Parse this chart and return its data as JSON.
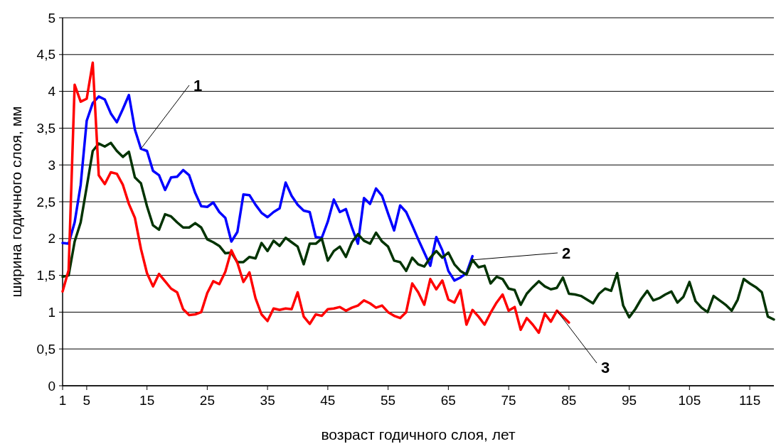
{
  "chart_data": {
    "type": "line",
    "xlabel": "возраст годичного слоя, лет",
    "ylabel": "ширина годичного слоя, мм",
    "xlim": [
      1,
      119
    ],
    "xticks": [
      1,
      5,
      15,
      25,
      35,
      45,
      55,
      65,
      75,
      85,
      95,
      105,
      115
    ],
    "ylim": [
      0,
      5
    ],
    "yticks": [
      0,
      {
        "value": 0.5,
        "label": "0,5"
      },
      1,
      {
        "value": 1.5,
        "label": "1,5"
      },
      2,
      {
        "value": 2.5,
        "label": "2,5"
      },
      3,
      {
        "value": 3.5,
        "label": "3,5"
      },
      4,
      {
        "value": 4.5,
        "label": "4,5"
      },
      5
    ],
    "grid": "y",
    "marker": "none",
    "line_style": "solid",
    "series": [
      {
        "name": "1",
        "color": "#0000ff",
        "x": [
          1,
          2,
          3,
          4,
          5,
          6,
          7,
          8,
          9,
          10,
          11,
          12,
          13,
          14,
          15,
          16,
          17,
          18,
          19,
          20,
          21,
          22,
          23,
          24,
          25,
          26,
          27,
          28,
          29,
          30,
          31,
          32,
          33,
          34,
          35,
          36,
          37,
          38,
          39,
          40,
          41,
          42,
          43,
          44,
          45,
          46,
          47,
          48,
          49,
          50,
          51,
          52,
          53,
          54,
          55,
          56,
          57,
          58,
          59,
          60,
          61,
          62,
          63,
          64,
          65,
          66,
          67,
          68,
          69
        ],
        "values": [
          1.94,
          1.93,
          2.22,
          2.73,
          3.6,
          3.84,
          3.93,
          3.89,
          3.7,
          3.58,
          3.76,
          3.95,
          3.48,
          3.22,
          3.19,
          2.92,
          2.86,
          2.66,
          2.83,
          2.84,
          2.93,
          2.86,
          2.62,
          2.44,
          2.43,
          2.49,
          2.36,
          2.28,
          1.96,
          2.09,
          2.6,
          2.59,
          2.46,
          2.35,
          2.29,
          2.36,
          2.41,
          2.76,
          2.58,
          2.46,
          2.38,
          2.36,
          2.02,
          2.01,
          2.23,
          2.53,
          2.36,
          2.4,
          2.15,
          1.93,
          2.55,
          2.47,
          2.68,
          2.58,
          2.34,
          2.11,
          2.45,
          2.36,
          2.18,
          1.99,
          1.81,
          1.63,
          2.02,
          1.84,
          1.56,
          1.43,
          1.47,
          1.53,
          1.76
        ]
      },
      {
        "name": "2",
        "color": "#003300",
        "x": [
          1,
          2,
          3,
          4,
          5,
          6,
          7,
          8,
          9,
          10,
          11,
          12,
          13,
          14,
          15,
          16,
          17,
          18,
          19,
          20,
          21,
          22,
          23,
          24,
          25,
          26,
          27,
          28,
          29,
          30,
          31,
          32,
          33,
          34,
          35,
          36,
          37,
          38,
          39,
          40,
          41,
          42,
          43,
          44,
          45,
          46,
          47,
          48,
          49,
          50,
          51,
          52,
          53,
          54,
          55,
          56,
          57,
          58,
          59,
          60,
          61,
          62,
          63,
          64,
          65,
          66,
          67,
          68,
          69,
          70,
          71,
          72,
          73,
          74,
          75,
          76,
          77,
          78,
          79,
          80,
          81,
          82,
          83,
          84,
          85,
          86,
          87,
          88,
          89,
          90,
          91,
          92,
          93,
          94,
          95,
          96,
          97,
          98,
          99,
          100,
          101,
          102,
          103,
          104,
          105,
          106,
          107,
          108,
          109,
          110,
          111,
          112,
          113,
          114,
          115,
          116,
          117,
          118,
          119
        ],
        "values": [
          1.48,
          1.5,
          1.96,
          2.22,
          2.7,
          3.19,
          3.29,
          3.25,
          3.3,
          3.19,
          3.11,
          3.18,
          2.83,
          2.75,
          2.44,
          2.18,
          2.12,
          2.33,
          2.3,
          2.22,
          2.15,
          2.15,
          2.21,
          2.15,
          1.99,
          1.95,
          1.9,
          1.8,
          1.81,
          1.68,
          1.68,
          1.75,
          1.73,
          1.94,
          1.83,
          1.97,
          1.9,
          2.01,
          1.95,
          1.89,
          1.65,
          1.93,
          1.93,
          2.0,
          1.7,
          1.83,
          1.89,
          1.75,
          1.95,
          2.06,
          1.97,
          1.93,
          2.08,
          1.96,
          1.89,
          1.7,
          1.68,
          1.56,
          1.74,
          1.65,
          1.62,
          1.74,
          1.83,
          1.74,
          1.81,
          1.65,
          1.56,
          1.51,
          1.71,
          1.61,
          1.63,
          1.39,
          1.48,
          1.45,
          1.32,
          1.3,
          1.1,
          1.25,
          1.34,
          1.42,
          1.35,
          1.31,
          1.33,
          1.47,
          1.25,
          1.24,
          1.22,
          1.17,
          1.12,
          1.25,
          1.32,
          1.29,
          1.53,
          1.09,
          0.93,
          1.04,
          1.18,
          1.29,
          1.16,
          1.19,
          1.24,
          1.28,
          1.13,
          1.21,
          1.41,
          1.15,
          1.06,
          1.0,
          1.22,
          1.16,
          1.1,
          1.02,
          1.17,
          1.45,
          1.39,
          1.34,
          1.27,
          0.94,
          0.9
        ]
      },
      {
        "name": "3",
        "color": "#ff0000",
        "x": [
          1,
          2,
          3,
          4,
          5,
          6,
          7,
          8,
          9,
          10,
          11,
          12,
          13,
          14,
          15,
          16,
          17,
          18,
          19,
          20,
          21,
          22,
          23,
          24,
          25,
          26,
          27,
          28,
          29,
          30,
          31,
          32,
          33,
          34,
          35,
          36,
          37,
          38,
          39,
          40,
          41,
          42,
          43,
          44,
          45,
          46,
          47,
          48,
          49,
          50,
          51,
          52,
          53,
          54,
          55,
          56,
          57,
          58,
          59,
          60,
          61,
          62,
          63,
          64,
          65,
          66,
          67,
          68,
          69,
          70,
          71,
          72,
          73,
          74,
          75,
          76,
          77,
          78,
          79,
          80,
          81,
          82,
          83,
          84,
          85
        ],
        "values": [
          1.28,
          1.57,
          4.09,
          3.86,
          3.9,
          4.39,
          2.86,
          2.74,
          2.9,
          2.88,
          2.73,
          2.47,
          2.28,
          1.86,
          1.53,
          1.35,
          1.52,
          1.42,
          1.32,
          1.27,
          1.04,
          0.96,
          0.97,
          1.0,
          1.26,
          1.42,
          1.38,
          1.55,
          1.84,
          1.67,
          1.41,
          1.54,
          1.19,
          0.97,
          0.88,
          1.05,
          1.03,
          1.05,
          1.04,
          1.27,
          0.94,
          0.84,
          0.97,
          0.95,
          1.04,
          1.05,
          1.07,
          1.02,
          1.06,
          1.09,
          1.16,
          1.12,
          1.06,
          1.09,
          1.0,
          0.95,
          0.92,
          1.0,
          1.39,
          1.27,
          1.1,
          1.45,
          1.31,
          1.43,
          1.17,
          1.13,
          1.3,
          0.83,
          1.03,
          0.94,
          0.83,
          0.99,
          1.13,
          1.24,
          1.02,
          1.07,
          0.76,
          0.92,
          0.83,
          0.72,
          0.98,
          0.87,
          1.02,
          0.94,
          0.86
        ]
      }
    ]
  }
}
